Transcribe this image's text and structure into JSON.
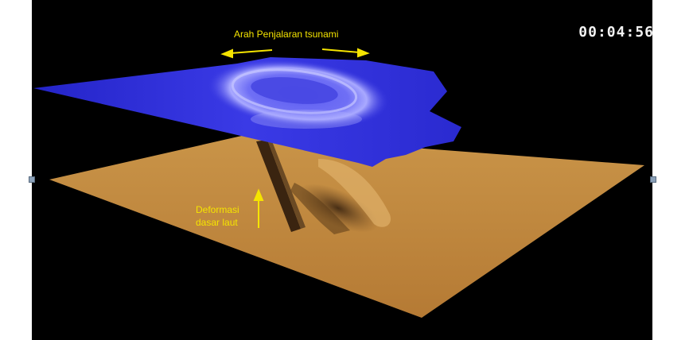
{
  "video": {
    "timecode": "00:04:56"
  },
  "annotations": {
    "propagation_label": "Arah Penjalaran tsunami",
    "deformation_line1": "Deformasi",
    "deformation_line2": "dasar laut"
  },
  "colors": {
    "background": "#000000",
    "water_surface": "#2f2fd8",
    "seafloor": "#c58a3e",
    "annotation": "#f5e400"
  }
}
